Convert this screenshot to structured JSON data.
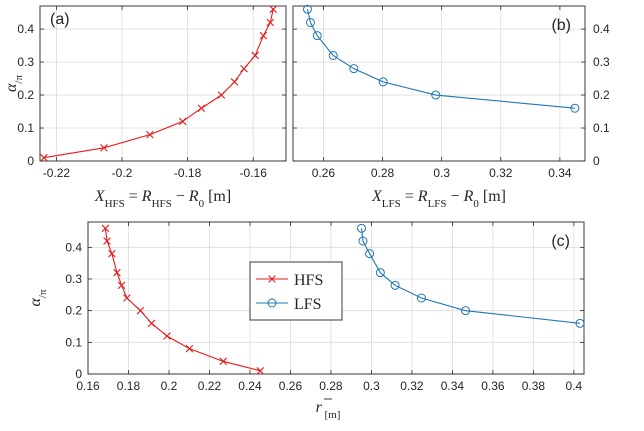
{
  "colors": {
    "hfs": "#e41a1c",
    "lfs": "#1f77b4",
    "axis": "#262626",
    "grid": "#dcdcdc"
  },
  "chart_data": [
    {
      "id": "a",
      "type": "line",
      "panel_label": "(a)",
      "xlabel_parts": [
        "X",
        "HFS",
        " = R",
        "HFS",
        " − R",
        "0",
        " [m]"
      ],
      "ylabel_parts": [
        "α",
        "/π"
      ],
      "xlim": [
        -0.225,
        -0.15
      ],
      "ylim": [
        0,
        0.47
      ],
      "xticks": [
        -0.22,
        -0.2,
        -0.18,
        -0.16
      ],
      "xtick_labels": [
        "-0.22",
        "-0.2",
        "-0.18",
        "-0.16"
      ],
      "yticks": [
        0,
        0.1,
        0.2,
        0.3,
        0.4
      ],
      "ytick_labels": [
        "0",
        "0.1",
        "0.2",
        "0.3",
        "0.4"
      ],
      "ytick_side": "left",
      "grid": true,
      "series": [
        {
          "key": "hfs",
          "marker": "x",
          "x": [
            -0.2238,
            -0.2055,
            -0.1915,
            -0.1815,
            -0.1758,
            -0.1697,
            -0.1657,
            -0.1628,
            -0.1594,
            -0.1569,
            -0.1548,
            -0.1539
          ],
          "y": [
            0.01,
            0.04,
            0.08,
            0.12,
            0.16,
            0.2,
            0.24,
            0.28,
            0.32,
            0.38,
            0.42,
            0.46
          ]
        }
      ]
    },
    {
      "id": "b",
      "type": "line",
      "panel_label": "(b)",
      "xlabel_parts": [
        "X",
        "LFS",
        " = R",
        "LFS",
        " − R",
        "0",
        " [m]"
      ],
      "ylabel_parts": [
        "",
        ""
      ],
      "xlim": [
        0.2497,
        0.3485
      ],
      "ylim": [
        0,
        0.47
      ],
      "xticks": [
        0.26,
        0.28,
        0.3,
        0.32,
        0.34
      ],
      "xtick_labels": [
        "0.26",
        "0.28",
        "0.3",
        "0.32",
        "0.34"
      ],
      "yticks": [
        0,
        0.1,
        0.2,
        0.3,
        0.4
      ],
      "ytick_labels": [
        "0",
        "0.1",
        "0.2",
        "0.3",
        "0.4"
      ],
      "ytick_side": "right",
      "grid": true,
      "series": [
        {
          "key": "lfs",
          "marker": "o",
          "x": [
            0.2546,
            0.2556,
            0.2579,
            0.2633,
            0.2703,
            0.2802,
            0.298,
            0.3451
          ],
          "y": [
            0.46,
            0.42,
            0.38,
            0.32,
            0.28,
            0.24,
            0.2,
            0.16
          ]
        }
      ]
    },
    {
      "id": "c",
      "type": "line",
      "panel_label": "(c)",
      "xlabel_parts": [
        "r",
        " [m]"
      ],
      "ylabel_parts": [
        "α",
        "/π"
      ],
      "xlim": [
        0.16,
        0.405
      ],
      "ylim": [
        0,
        0.48
      ],
      "xticks": [
        0.16,
        0.18,
        0.2,
        0.22,
        0.24,
        0.26,
        0.28,
        0.3,
        0.32,
        0.34,
        0.36,
        0.38,
        0.4
      ],
      "xtick_labels": [
        "0.16",
        "0.18",
        "0.2",
        "0.22",
        "0.24",
        "0.26",
        "0.28",
        "0.3",
        "0.32",
        "0.34",
        "0.36",
        "0.38",
        "0.4"
      ],
      "yticks": [
        0,
        0.1,
        0.2,
        0.3,
        0.4
      ],
      "ytick_labels": [
        "0",
        "0.1",
        "0.2",
        "0.3",
        "0.4"
      ],
      "ytick_side": "left",
      "grid": true,
      "legend": {
        "position": "center-left",
        "entries": [
          "HFS",
          "LFS"
        ]
      },
      "series": [
        {
          "key": "hfs",
          "name": "HFS",
          "marker": "x",
          "x": [
            0.1686,
            0.1694,
            0.1718,
            0.1743,
            0.1766,
            0.1792,
            0.1859,
            0.1914,
            0.199,
            0.2101,
            0.2268,
            0.2451
          ],
          "y": [
            0.46,
            0.42,
            0.38,
            0.32,
            0.28,
            0.24,
            0.2,
            0.16,
            0.12,
            0.08,
            0.04,
            0.01
          ]
        },
        {
          "key": "lfs",
          "name": "LFS",
          "marker": "o",
          "x": [
            0.2951,
            0.2958,
            0.2991,
            0.3044,
            0.3117,
            0.3247,
            0.3465,
            0.403
          ],
          "y": [
            0.46,
            0.42,
            0.38,
            0.32,
            0.28,
            0.24,
            0.2,
            0.16
          ]
        }
      ]
    }
  ]
}
